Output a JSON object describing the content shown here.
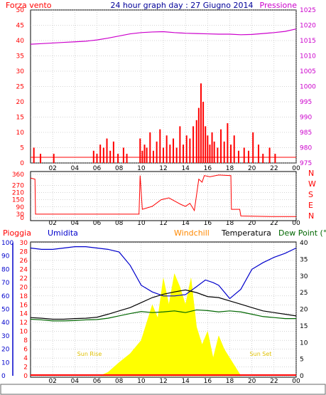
{
  "header": {
    "left_label": "Forza vento",
    "title": "24 hour graph day : 27 Giugno 2014",
    "right_label": "Pressione"
  },
  "colors": {
    "wind": "#ff0000",
    "pressure": "#cc00cc",
    "humidity": "#0000cc",
    "temperature": "#000000",
    "dewpoint": "#006600",
    "solar": "#ffff00",
    "windchill": "#ff8800",
    "rain": "#ff0000",
    "frame": "#000000"
  },
  "chart_data": [
    {
      "type": "bar",
      "name": "wind-pressure-panel",
      "x_ticks": [
        "02",
        "04",
        "06",
        "08",
        "10",
        "12",
        "14",
        "16",
        "18",
        "20",
        "22",
        "00"
      ],
      "y_left_ticks": [
        "0",
        "5",
        "10",
        "15",
        "20",
        "25",
        "30",
        "35",
        "40",
        "45",
        "50"
      ],
      "y_left_range": [
        0,
        50
      ],
      "y_right_ticks": [
        "975",
        "980",
        "985",
        "990",
        "995",
        "1000",
        "1005",
        "1010",
        "1015",
        "1020",
        "1025"
      ],
      "y_right_range": [
        975,
        1025
      ],
      "left_label": "Forza vento",
      "right_label": "Pressione",
      "pressure": {
        "x": [
          0,
          1,
          2,
          3,
          4,
          5,
          6,
          7,
          8,
          9,
          10,
          11,
          12,
          13,
          14,
          15,
          16,
          17,
          18,
          19,
          20,
          21,
          22,
          23,
          24
        ],
        "y": [
          1013.8,
          1014.0,
          1014.2,
          1014.4,
          1014.6,
          1014.8,
          1015.2,
          1015.8,
          1016.5,
          1017.2,
          1017.6,
          1017.8,
          1017.9,
          1017.6,
          1017.4,
          1017.3,
          1017.2,
          1017.1,
          1017.1,
          1016.9,
          1017.0,
          1017.3,
          1017.6,
          1018.0,
          1018.8
        ]
      },
      "wind_bars": {
        "x": [
          0.3,
          0.9,
          2.1,
          5.7,
          6.0,
          6.3,
          6.6,
          6.9,
          7.2,
          7.5,
          7.9,
          8.4,
          8.7,
          9.9,
          10.1,
          10.3,
          10.5,
          10.8,
          11.1,
          11.4,
          11.7,
          12.0,
          12.3,
          12.6,
          12.9,
          13.2,
          13.5,
          13.8,
          14.1,
          14.4,
          14.7,
          15.0,
          15.2,
          15.4,
          15.6,
          15.8,
          16.0,
          16.2,
          16.4,
          16.6,
          16.9,
          17.2,
          17.5,
          17.8,
          18.1,
          18.4,
          18.8,
          19.3,
          19.7,
          20.1,
          20.6,
          21.0,
          21.6,
          22.1
        ],
        "y": [
          5,
          3,
          3,
          4,
          3,
          6,
          5,
          8,
          4,
          7,
          3,
          5,
          3,
          8,
          4,
          6,
          5,
          10,
          4,
          7,
          11,
          5,
          9,
          6,
          8,
          5,
          12,
          6,
          9,
          8,
          12,
          14,
          18,
          26,
          20,
          12,
          9,
          6,
          10,
          7,
          5,
          11,
          7,
          13,
          6,
          9,
          4,
          5,
          4,
          10,
          6,
          3,
          5,
          3
        ]
      }
    },
    {
      "type": "line",
      "name": "wind-direction-panel",
      "x_ticks": [
        "02",
        "04",
        "06",
        "08",
        "10",
        "12",
        "14",
        "16",
        "18",
        "20",
        "22",
        "00"
      ],
      "y_left_ticks": [
        "0",
        "30",
        "90",
        "150",
        "210",
        "270",
        "360"
      ],
      "y_left_range": [
        0,
        360
      ],
      "y_right_ticks": [
        "N",
        "W",
        "S",
        "E",
        "N"
      ],
      "direction": {
        "x": [
          0,
          0.4,
          0.45,
          9.8,
          9.9,
          10.1,
          11.0,
          11.8,
          12.5,
          13.0,
          13.6,
          14.0,
          14.4,
          14.8,
          15.2,
          15.5,
          15.7,
          16.2,
          17.0,
          18.1,
          18.15,
          18.9,
          19.0,
          22.0,
          24.0
        ],
        "y": [
          330,
          320,
          30,
          30,
          350,
          70,
          95,
          150,
          165,
          140,
          110,
          95,
          120,
          60,
          320,
          295,
          350,
          340,
          355,
          350,
          70,
          70,
          15,
          10,
          10
        ]
      }
    },
    {
      "type": "line",
      "name": "thermo-hygro-panel",
      "x_ticks": [
        "02",
        "04",
        "06",
        "08",
        "10",
        "12",
        "14",
        "16",
        "18",
        "20",
        "22",
        "00"
      ],
      "y_left_ticks": [
        "0",
        "2",
        "4",
        "6",
        "8",
        "10",
        "12",
        "14",
        "16",
        "18",
        "20",
        "22",
        "24",
        "26",
        "28",
        "30"
      ],
      "y_left_range": [
        0,
        30
      ],
      "humidity_ticks": [
        "0",
        "10",
        "20",
        "30",
        "40",
        "50",
        "60",
        "70",
        "80",
        "90",
        "100"
      ],
      "humidity_range": [
        0,
        100
      ],
      "y_right_ticks": [
        "0",
        "5",
        "10",
        "15",
        "20",
        "25",
        "30",
        "35",
        "40"
      ],
      "y_right_range": [
        0,
        40
      ],
      "legend": [
        "Pioggia",
        "Umidita",
        "Windchill",
        "Temperatura",
        "Dew Point (°C"
      ],
      "annotations": [
        "Sun Rise",
        "Sun Set"
      ],
      "humidity": {
        "x": [
          0,
          1,
          2,
          3,
          4,
          5,
          6,
          7,
          8,
          9,
          10,
          11,
          12,
          13,
          14,
          15,
          15.8,
          16.5,
          17,
          18,
          19,
          20,
          21,
          22,
          23,
          24
        ],
        "y": [
          96,
          95,
          95,
          96,
          97,
          97,
          96,
          95,
          93,
          83,
          68,
          63,
          60,
          60,
          61,
          67,
          72,
          70,
          68,
          58,
          65,
          80,
          85,
          89,
          92,
          96
        ]
      },
      "temperature": {
        "x": [
          0,
          1,
          2,
          3,
          4,
          5,
          6,
          7,
          8,
          9,
          10,
          11,
          12,
          13,
          14,
          15,
          16,
          17,
          18,
          19,
          20,
          21,
          22,
          23,
          24
        ],
        "y": [
          17.5,
          17.3,
          17.0,
          17.0,
          17.2,
          17.3,
          17.6,
          18.5,
          19.5,
          20.5,
          22.0,
          23.5,
          24.5,
          25.2,
          25.8,
          25.0,
          23.8,
          23.5,
          22.5,
          21.5,
          20.5,
          19.5,
          19.0,
          18.5,
          18.0
        ]
      },
      "dewpoint": {
        "x": [
          0,
          1,
          2,
          3,
          4,
          5,
          6,
          7,
          8,
          9,
          10,
          11,
          12,
          13,
          14,
          15,
          16,
          17,
          18,
          19,
          20,
          21,
          22,
          23,
          24
        ],
        "y": [
          17.0,
          16.8,
          16.5,
          16.5,
          16.6,
          16.8,
          16.9,
          17.3,
          18.0,
          18.7,
          19.3,
          19.0,
          19.2,
          19.5,
          19.0,
          19.8,
          19.6,
          19.2,
          19.5,
          19.2,
          18.5,
          17.8,
          17.5,
          17.2,
          17.2
        ]
      },
      "solar": {
        "x": [
          6.3,
          7,
          8,
          9,
          10,
          10.5,
          11,
          11.5,
          12,
          12.5,
          13,
          13.5,
          14,
          14.5,
          15,
          15.5,
          16,
          16.5,
          17,
          17.5,
          18,
          18.5,
          19
        ],
        "y": [
          0,
          0.8,
          3,
          5,
          8,
          12,
          16,
          13,
          22,
          16,
          23,
          20,
          16,
          22,
          11,
          7,
          10,
          4,
          9,
          6,
          4,
          2,
          0
        ]
      }
    }
  ]
}
